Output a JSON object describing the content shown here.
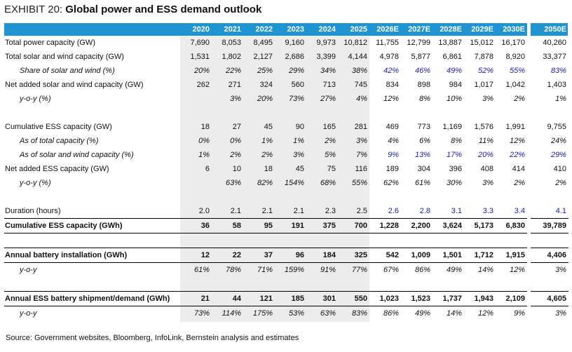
{
  "title": {
    "exhibit": "EXHIBIT 20:",
    "name": "Global power and ESS demand outlook"
  },
  "years": [
    "2020",
    "2021",
    "2022",
    "2023",
    "2024",
    "2025",
    "2026E",
    "2027E",
    "2028E",
    "2029E",
    "2030E",
    "2050E"
  ],
  "rows": [
    {
      "label": "Total power capacity (GW)",
      "style": "normal",
      "values": [
        "7,690",
        "8,053",
        "8,495",
        "9,160",
        "9,973",
        "10,812",
        "11,755",
        "12,799",
        "13,887",
        "15,012",
        "16,170",
        "40,260"
      ]
    },
    {
      "label": "Total solar and wind capacity (GW)",
      "style": "normal",
      "values": [
        "1,531",
        "1,802",
        "2,127",
        "2,686",
        "3,399",
        "4,144",
        "4,978",
        "5,877",
        "6,861",
        "7,878",
        "8,920",
        "33,377"
      ]
    },
    {
      "label": "Share of solar and wind (%)",
      "style": "italic",
      "blue": true,
      "values": [
        "20%",
        "22%",
        "25%",
        "29%",
        "34%",
        "38%",
        "42%",
        "46%",
        "49%",
        "52%",
        "55%",
        "83%"
      ]
    },
    {
      "label": "Net added solar and wind capacity (GW)",
      "style": "normal",
      "values": [
        "262",
        "271",
        "324",
        "560",
        "713",
        "745",
        "834",
        "898",
        "984",
        "1,017",
        "1,042",
        "1,403"
      ]
    },
    {
      "label": "y-o-y (%)",
      "style": "italic",
      "values": [
        "",
        "3%",
        "20%",
        "73%",
        "27%",
        "4%",
        "12%",
        "8%",
        "10%",
        "3%",
        "2%",
        "1%"
      ]
    },
    {
      "label": "",
      "style": "blank",
      "values": [
        "",
        "",
        "",
        "",
        "",
        "",
        "",
        "",
        "",
        "",
        "",
        ""
      ]
    },
    {
      "label": "Cumulative ESS capacity (GW)",
      "style": "normal",
      "values": [
        "18",
        "27",
        "45",
        "90",
        "165",
        "281",
        "469",
        "773",
        "1,169",
        "1,576",
        "1,991",
        "9,755"
      ]
    },
    {
      "label": "As of total capacity (%)",
      "style": "italic",
      "values": [
        "0%",
        "0%",
        "1%",
        "1%",
        "2%",
        "3%",
        "4%",
        "6%",
        "8%",
        "11%",
        "12%",
        "24%"
      ]
    },
    {
      "label": "As of solar and wind capacity (%)",
      "style": "italic",
      "blue": true,
      "values": [
        "1%",
        "2%",
        "2%",
        "3%",
        "5%",
        "7%",
        "9%",
        "13%",
        "17%",
        "20%",
        "22%",
        "29%"
      ]
    },
    {
      "label": "Net added ESS capacity (GW)",
      "style": "normal",
      "values": [
        "6",
        "10",
        "18",
        "45",
        "75",
        "116",
        "189",
        "304",
        "396",
        "408",
        "414",
        "410"
      ]
    },
    {
      "label": "y-o-y (%)",
      "style": "italic",
      "values": [
        "",
        "63%",
        "82%",
        "154%",
        "68%",
        "55%",
        "62%",
        "61%",
        "30%",
        "3%",
        "2%",
        "2%"
      ]
    },
    {
      "label": "",
      "style": "blank",
      "values": [
        "",
        "",
        "",
        "",
        "",
        "",
        "",
        "",
        "",
        "",
        "",
        ""
      ]
    },
    {
      "label": "Duration (hours)",
      "style": "normal",
      "blue": true,
      "values": [
        "2.0",
        "2.1",
        "2.1",
        "2.1",
        "2.3",
        "2.5",
        "2.6",
        "2.8",
        "3.1",
        "3.3",
        "3.4",
        "4.1"
      ]
    },
    {
      "label": "Cumulative ESS capacity (GWh)",
      "style": "bold",
      "values": [
        "36",
        "58",
        "95",
        "191",
        "375",
        "700",
        "1,228",
        "2,200",
        "3,624",
        "5,173",
        "6,830",
        "39,789"
      ]
    },
    {
      "label": "",
      "style": "blank",
      "values": [
        "",
        "",
        "",
        "",
        "",
        "",
        "",
        "",
        "",
        "",
        "",
        ""
      ]
    },
    {
      "label": "Annual battery installation (GWh)",
      "style": "bold",
      "values": [
        "12",
        "22",
        "37",
        "96",
        "184",
        "325",
        "542",
        "1,009",
        "1,501",
        "1,712",
        "1,915",
        "4,406"
      ]
    },
    {
      "label": "y-o-y",
      "style": "italic",
      "values": [
        "61%",
        "78%",
        "71%",
        "159%",
        "91%",
        "77%",
        "67%",
        "86%",
        "49%",
        "14%",
        "12%",
        "3%"
      ]
    },
    {
      "label": "",
      "style": "blank",
      "values": [
        "",
        "",
        "",
        "",
        "",
        "",
        "",
        "",
        "",
        "",
        "",
        ""
      ]
    },
    {
      "label": "Annual ESS battery shipment/demand (GWh)",
      "style": "bold",
      "values": [
        "21",
        "44",
        "121",
        "185",
        "301",
        "550",
        "1,023",
        "1,523",
        "1,737",
        "1,943",
        "2,109",
        "4,605"
      ]
    },
    {
      "label": "y-o-y",
      "style": "italic",
      "values": [
        "73%",
        "114%",
        "175%",
        "53%",
        "63%",
        "83%",
        "86%",
        "49%",
        "14%",
        "12%",
        "9%",
        "3%"
      ]
    }
  ],
  "source": "Source: Government websites, Bloomberg, InfoLink, Bernstein analysis and estimates"
}
